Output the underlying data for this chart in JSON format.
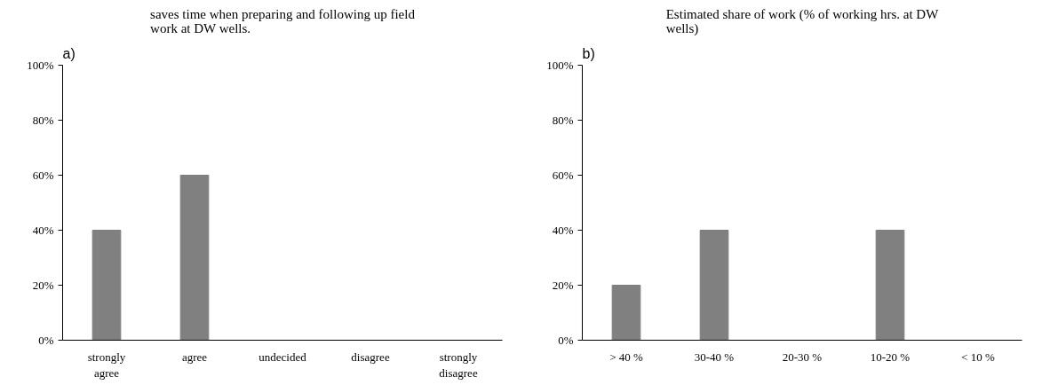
{
  "chart_data": [
    {
      "type": "bar",
      "title": "saves time when preparing and following up field work at DW wells.",
      "annotations": [
        "a)"
      ],
      "categories": [
        "strongly agree",
        "agree",
        "undecided",
        "disagree",
        "strongly disagree"
      ],
      "values": [
        40,
        60,
        0,
        0,
        0
      ],
      "color": "#808080",
      "ylim": [
        0,
        100
      ],
      "yticks": [
        {
          "value": 0,
          "label": "0%"
        },
        {
          "value": 20,
          "label": "20%"
        },
        {
          "value": 40,
          "label": "40%"
        },
        {
          "value": 60,
          "label": "60%"
        },
        {
          "value": 80,
          "label": "80%"
        },
        {
          "value": 100,
          "label": "100%"
        }
      ],
      "grid": false
    },
    {
      "type": "bar",
      "title": "Estimated share of work (% of working hrs. at DW wells)",
      "annotations": [
        "b)"
      ],
      "categories": [
        "> 40 %",
        "30-40 %",
        "20-30 %",
        "10-20 %",
        "< 10 %"
      ],
      "values": [
        20,
        40,
        0,
        40,
        0
      ],
      "color": "#808080",
      "ylim": [
        0,
        100
      ],
      "yticks": [
        {
          "value": 0,
          "label": "0%"
        },
        {
          "value": 20,
          "label": "20%"
        },
        {
          "value": 40,
          "label": "40%"
        },
        {
          "value": 60,
          "label": "60%"
        },
        {
          "value": 80,
          "label": "80%"
        },
        {
          "value": 100,
          "label": "100%"
        }
      ],
      "grid": false
    }
  ]
}
